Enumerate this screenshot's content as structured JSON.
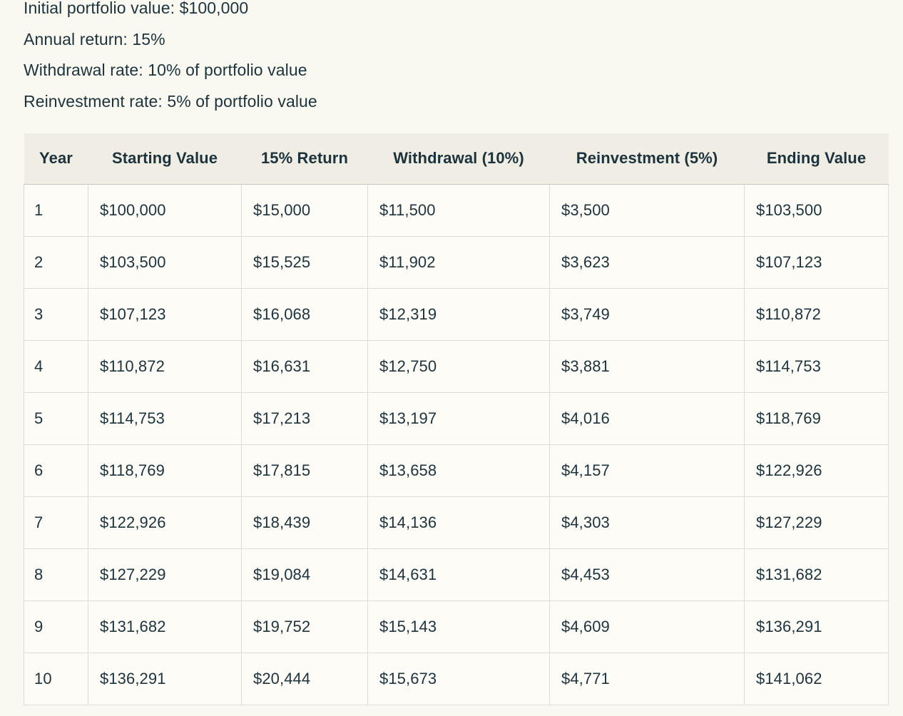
{
  "page": {
    "background_color": "#FAF9F1",
    "text_color": "#1C333D",
    "table_header_background": "#EFEDE4",
    "table_cell_background": "#FDFCF6",
    "table_border_color": "#DEDCD4"
  },
  "intro_lines": [
    "Initial portfolio value: $100,000",
    "Annual return: 15%",
    "Withdrawal rate: 10% of portfolio value",
    "Reinvestment rate: 5% of portfolio value"
  ],
  "table": {
    "columns": [
      "Year",
      "Starting Value",
      "15% Return",
      "Withdrawal (10%)",
      "Reinvestment (5%)",
      "Ending Value"
    ],
    "rows": [
      [
        "1",
        "$100,000",
        "$15,000",
        "$11,500",
        "$3,500",
        "$103,500"
      ],
      [
        "2",
        "$103,500",
        "$15,525",
        "$11,902",
        "$3,623",
        "$107,123"
      ],
      [
        "3",
        "$107,123",
        "$16,068",
        "$12,319",
        "$3,749",
        "$110,872"
      ],
      [
        "4",
        "$110,872",
        "$16,631",
        "$12,750",
        "$3,881",
        "$114,753"
      ],
      [
        "5",
        "$114,753",
        "$17,213",
        "$13,197",
        "$4,016",
        "$118,769"
      ],
      [
        "6",
        "$118,769",
        "$17,815",
        "$13,658",
        "$4,157",
        "$122,926"
      ],
      [
        "7",
        "$122,926",
        "$18,439",
        "$14,136",
        "$4,303",
        "$127,229"
      ],
      [
        "8",
        "$127,229",
        "$19,084",
        "$14,631",
        "$4,453",
        "$131,682"
      ],
      [
        "9",
        "$131,682",
        "$19,752",
        "$15,143",
        "$4,609",
        "$136,291"
      ],
      [
        "10",
        "$136,291",
        "$20,444",
        "$15,673",
        "$4,771",
        "$141,062"
      ]
    ]
  }
}
